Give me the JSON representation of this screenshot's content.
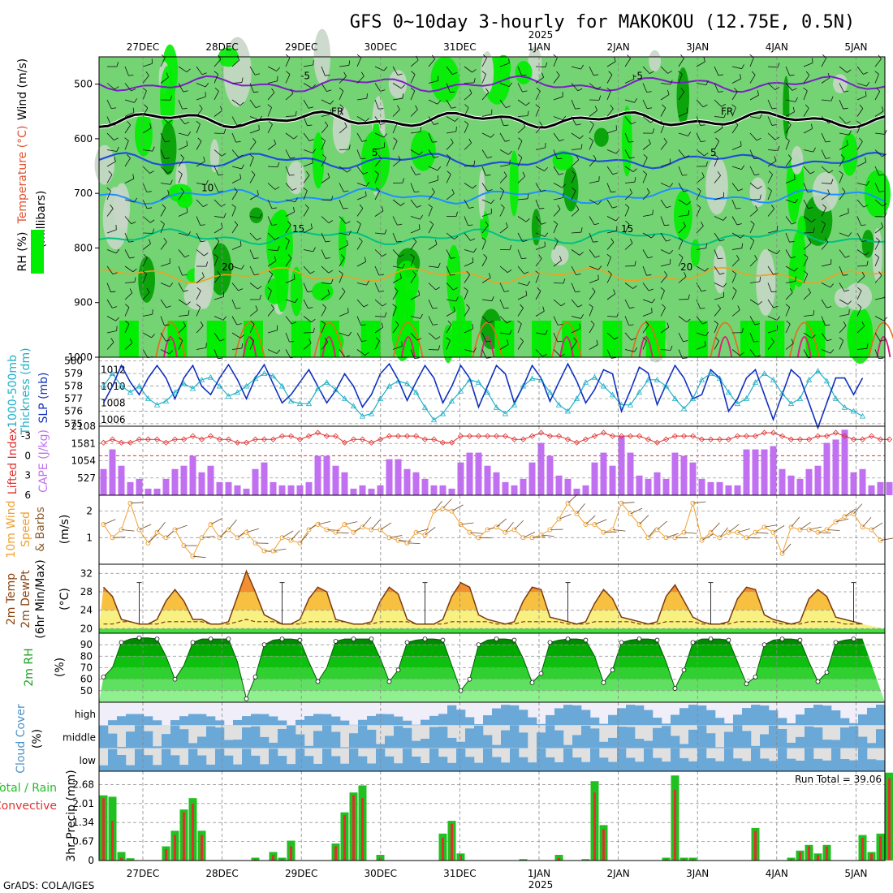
{
  "title": "GFS 0~10day 3-hourly for MAKOKOU (12.75E, 0.5N)",
  "year_label": "2025",
  "credit": "GrADS: COLA/IGES",
  "date_labels": [
    "27DEC",
    "28DEC",
    "29DEC",
    "30DEC",
    "31DEC",
    "1JAN",
    "2JAN",
    "3JAN",
    "4JAN",
    "5JAN"
  ],
  "colors": {
    "rh_light": "#c8d6c8",
    "rh_mid": "#74d474",
    "rh_dark": "#00ee00",
    "rh_darkest": "#00a000",
    "temp_neg5": "#7b1fc4",
    "temp_fr": "#000000",
    "temp_5": "#1f4fd6",
    "temp_10": "#1e90ff",
    "temp_15": "#00c080",
    "temp_20": "#f0a020",
    "temp_25": "#e07020",
    "temp_30": "#e0207a",
    "thickness": "#20b0c8",
    "slp": "#1030c0",
    "lifted": "#e03030",
    "cape": "#c070f0",
    "wind": "#f0a030",
    "precip_total": "#20c020",
    "precip_conv": "#e03030",
    "cloud": "#6aa8d8"
  },
  "panels": {
    "upper": {
      "ylabel_wind": "Wind (m/s)",
      "ylabel_temp": "Temperature (°C)",
      "ylabel_rh": "RH (%)",
      "ylabel_units": "(millibars)",
      "yticks": [
        "500",
        "600",
        "700",
        "800",
        "900",
        "1000"
      ],
      "contour_labels": [
        "-5",
        "FR",
        "5",
        "10",
        "15",
        "20"
      ]
    },
    "thickness": {
      "ylabel_left": "1000-500mb",
      "ylabel_left2": "Thickness (dm)",
      "ylabel_right": "SLP (mb)",
      "left_ticks": [
        "580",
        "579",
        "578",
        "577",
        "576",
        "575"
      ],
      "right_ticks": [
        "1012",
        "1010",
        "1008",
        "1006"
      ]
    },
    "cape": {
      "ylabel_left": "Lifted Index",
      "ylabel_right": "CAPE (J/kg)",
      "left_ticks": [
        "-3",
        "0",
        "3",
        "6"
      ],
      "right_ticks": [
        "2108",
        "1581",
        "1054",
        "527"
      ]
    },
    "wind10": {
      "ylabel_a": "10m Wind",
      "ylabel_b": "Speed",
      "ylabel_c": "& Barbs",
      "ylabel_d": "(m/s)",
      "ticks": [
        "2",
        "1"
      ]
    },
    "temp2m": {
      "ylabel_a": "2m Temp",
      "ylabel_b": "2m DewPt",
      "ylabel_c": "(6hr Min/Max)",
      "ylabel_d": "(°C)",
      "ticks": [
        "32",
        "28",
        "24",
        "20"
      ]
    },
    "rh2m": {
      "ylabel_a": "2m RH",
      "ylabel_b": "(%)",
      "ticks": [
        "90",
        "80",
        "70",
        "60",
        "50"
      ]
    },
    "cloud": {
      "ylabel_a": "Cloud Cover",
      "ylabel_b": "(%)",
      "levels": [
        "high",
        "middle",
        "low"
      ]
    },
    "precip": {
      "ylabel_a": "Total / Rain",
      "ylabel_b": "Convective",
      "ylabel_c": "3hr Precip (mm)",
      "ticks": [
        "2.68",
        "2.01",
        "1.34",
        "0.67",
        "0"
      ],
      "run_total": "Run Total = 39.06"
    }
  },
  "chart_data": [
    {
      "type": "line",
      "name": "2m temperature",
      "x_start": "26DEC 09Z",
      "x_step_hours": 3,
      "ylabel": "°C",
      "ylim": [
        19,
        34
      ],
      "series": [
        {
          "name": "2m Temp",
          "values": [
            29,
            27,
            22,
            21.5,
            21,
            21,
            22,
            26,
            28.5,
            26,
            22,
            22,
            21,
            21,
            21.5,
            27,
            32.5,
            28,
            23,
            22,
            21,
            21,
            22,
            26.5,
            29,
            28,
            22,
            21.5,
            21,
            21,
            21.5,
            26,
            29,
            27.5,
            22,
            21,
            21,
            21,
            22,
            27,
            30,
            29,
            23,
            22,
            21.5,
            21,
            21.5,
            26,
            29,
            28.5,
            22.5,
            22,
            21.5,
            21,
            21.5,
            25.5,
            28.5,
            26.5,
            22.5,
            22,
            21.5,
            21,
            21.5,
            27,
            29.5,
            26,
            22.5,
            21.5,
            21,
            21,
            21.5,
            26.5,
            29,
            28.5,
            23,
            22,
            21.5,
            21,
            21.5,
            26.5,
            28.5,
            27,
            22.5,
            22,
            21.5,
            21
          ]
        },
        {
          "name": "2m DewPt",
          "values": [
            21,
            21,
            21.5,
            21.5,
            21,
            21,
            21,
            21.5,
            21.5,
            21.5,
            21.5,
            21.5,
            21,
            21,
            21,
            21.5,
            22,
            21.5,
            21.5,
            21.5,
            21,
            21,
            21,
            21.5,
            21.5,
            21.5,
            21.5,
            21.5,
            21,
            21,
            21,
            21.5,
            21.5,
            21.5,
            21.5,
            21,
            21,
            21,
            21,
            21.5,
            21.5,
            21.5,
            21.5,
            21.5,
            21,
            21,
            21,
            21.5,
            21.5,
            21.5,
            21.5,
            21.5,
            21,
            21,
            21,
            21.5,
            21.5,
            21.5,
            21.5,
            21.5,
            21,
            21,
            21,
            21.5,
            21.5,
            21.5,
            21.5,
            21,
            21,
            21,
            21,
            21.5,
            21.5,
            21.5,
            21.5,
            21.5,
            21,
            21,
            21,
            21.5,
            21.5,
            21.5,
            21.5,
            21,
            21,
            21
          ]
        }
      ]
    },
    {
      "type": "area",
      "name": "2m RH",
      "x_start": "26DEC 09Z",
      "x_step_hours": 3,
      "ylabel": "%",
      "ylim": [
        40,
        100
      ],
      "values": [
        62,
        70,
        92,
        95,
        96,
        96,
        95,
        80,
        60,
        72,
        92,
        95,
        95,
        95,
        95,
        75,
        43,
        62,
        90,
        94,
        95,
        95,
        94,
        75,
        58,
        70,
        93,
        95,
        95,
        95,
        95,
        78,
        58,
        68,
        92,
        94,
        95,
        95,
        94,
        72,
        50,
        60,
        90,
        94,
        95,
        95,
        94,
        78,
        57,
        65,
        92,
        94,
        95,
        95,
        94,
        80,
        57,
        68,
        92,
        94,
        95,
        95,
        94,
        75,
        52,
        68,
        92,
        95,
        95,
        95,
        94,
        75,
        56,
        62,
        90,
        94,
        95,
        95,
        94,
        75,
        58,
        66,
        92,
        94,
        95,
        95
      ]
    },
    {
      "type": "bar",
      "name": "3hr Precip",
      "x_start": "26DEC 09Z",
      "x_step_hours": 3,
      "ylabel": "mm",
      "ylim": [
        0,
        3.0
      ],
      "series": [
        {
          "name": "Total",
          "values": [
            2.3,
            2.25,
            0.3,
            0.08,
            0,
            0,
            0,
            0.5,
            1.05,
            1.8,
            2.2,
            1.05,
            0,
            0,
            0,
            0,
            0,
            0.1,
            0,
            0.3,
            0.1,
            0.7,
            0,
            0,
            0,
            0,
            0.6,
            1.7,
            2.4,
            2.65,
            0,
            0.2,
            0,
            0,
            0,
            0,
            0,
            0,
            0.95,
            1.4,
            0.25,
            0,
            0,
            0,
            0,
            0,
            0,
            0.05,
            0,
            0,
            0,
            0.2,
            0,
            0,
            0.05,
            2.8,
            1.25,
            0,
            0,
            0,
            0,
            0,
            0,
            0.1,
            3.0,
            0.1,
            0.1,
            0,
            0,
            0,
            0,
            0,
            0,
            1.15,
            0,
            0,
            0,
            0.1,
            0.35,
            0.55,
            0.25,
            0.55,
            0,
            0,
            0,
            0.9,
            0.3,
            0.95,
            3.1,
            0.1,
            0.1
          ]
        },
        {
          "name": "Convective",
          "values": [
            2.2,
            1.4,
            0.1,
            0,
            0,
            0,
            0,
            0.4,
            0.9,
            1.7,
            2.0,
            0.9,
            0,
            0,
            0,
            0,
            0,
            0.05,
            0,
            0.2,
            0.05,
            0.5,
            0,
            0,
            0,
            0,
            0.5,
            1.6,
            2.3,
            2.2,
            0,
            0.1,
            0,
            0,
            0,
            0,
            0,
            0,
            0.8,
            1.3,
            0.2,
            0,
            0,
            0,
            0,
            0,
            0,
            0,
            0,
            0,
            0,
            0.1,
            0,
            0,
            0,
            2.4,
            1.1,
            0,
            0,
            0,
            0,
            0,
            0,
            0.05,
            2.5,
            0.05,
            0.05,
            0,
            0,
            0,
            0,
            0,
            0,
            1.05,
            0,
            0,
            0,
            0.05,
            0.3,
            0.5,
            0.2,
            0.5,
            0,
            0,
            0,
            0.8,
            0.25,
            0.85,
            2.9,
            0.05,
            0.05
          ]
        }
      ]
    },
    {
      "type": "line",
      "name": "Thickness and SLP",
      "x_start": "26DEC 09Z",
      "x_step_hours": 3,
      "series": [
        {
          "name": "Thickness (dm)",
          "values": [
            578,
            579,
            578,
            577.5,
            578,
            577,
            576.5,
            576.8,
            577.5,
            578.2,
            577.8,
            578.5,
            578.7,
            578,
            577.2,
            577.5,
            578,
            578.6,
            579,
            578.8,
            578,
            576.8,
            576.6,
            576.6,
            577.8,
            578.3,
            577.7,
            577,
            576.4,
            575.6,
            575.8,
            577,
            578,
            578.4,
            578.2,
            577.5,
            576.3,
            575.3,
            575.8,
            576.8,
            577.6,
            578.5,
            578.3,
            577.5,
            576.3,
            575.8,
            576.5,
            578,
            578.6,
            578.5,
            577.5,
            576.5,
            576,
            577,
            578.3,
            578.7,
            578,
            577.3,
            576.5,
            576.5,
            577.5,
            578.5,
            578.5,
            578,
            577,
            576.2,
            577,
            578.5,
            579,
            578.6,
            577.5,
            576.6,
            577,
            578.3,
            579,
            578.5,
            577.4,
            576.6,
            577,
            578.5,
            579.2,
            578.4,
            577,
            576.3,
            576,
            575.6
          ]
        },
        {
          "name": "SLP (mb)",
          "values": [
            1008,
            1010,
            1012.5,
            1010.5,
            1009,
            1011,
            1012.5,
            1011,
            1008.5,
            1011,
            1012.5,
            1010,
            1009,
            1011,
            1012.6,
            1010.8,
            1008.5,
            1011,
            1012.6,
            1010.3,
            1008,
            1009,
            1010.5,
            1012,
            1010,
            1008,
            1009.5,
            1011.5,
            1010,
            1007.5,
            1009,
            1011.5,
            1012.7,
            1010.8,
            1008.3,
            1010.5,
            1012.5,
            1011,
            1008,
            1010,
            1012.5,
            1011,
            1007.5,
            1010,
            1012.5,
            1011.5,
            1008,
            1010,
            1012.5,
            1011,
            1008.2,
            1010.5,
            1012.7,
            1010.6,
            1008,
            1009.6,
            1012,
            1011.5,
            1007,
            1009.5,
            1012.3,
            1011.6,
            1007.8,
            1010.2,
            1012.5,
            1011,
            1008.5,
            1009,
            1012,
            1011,
            1007,
            1008.5,
            1011,
            1012,
            1009,
            1006,
            1009,
            1012,
            1011,
            1008,
            1005,
            1008,
            1011,
            1011,
            1009,
            1011
          ]
        }
      ]
    },
    {
      "type": "bar",
      "name": "CAPE and Lifted Index",
      "x_start": "26DEC 09Z",
      "x_step_hours": 3,
      "series": [
        {
          "name": "CAPE (J/kg)",
          "values": [
            800,
            1400,
            900,
            400,
            500,
            200,
            200,
            500,
            800,
            900,
            1200,
            700,
            900,
            400,
            400,
            300,
            200,
            800,
            1000,
            400,
            300,
            300,
            300,
            400,
            1200,
            1200,
            900,
            700,
            200,
            300,
            200,
            300,
            1100,
            1100,
            800,
            700,
            500,
            300,
            300,
            200,
            1000,
            1300,
            1300,
            900,
            700,
            400,
            300,
            500,
            1000,
            1600,
            1200,
            600,
            500,
            200,
            300,
            1000,
            1300,
            900,
            1800,
            1300,
            600,
            500,
            700,
            500,
            1300,
            1200,
            1000,
            500,
            400,
            400,
            300,
            300,
            1400,
            1400,
            1400,
            1500,
            800,
            600,
            500,
            800,
            900,
            1600,
            1700,
            2000,
            700,
            800,
            300,
            400,
            400
          ]
        },
        {
          "name": "Lifted Index",
          "values": [
            -2,
            -2.5,
            -2,
            -2,
            -2.5,
            -2.5,
            -2.5,
            -2,
            -2.5,
            -2.5,
            -3,
            -2.5,
            -3,
            -2.5,
            -2.5,
            -2,
            -2,
            -2.5,
            -2.5,
            -2.5,
            -3,
            -3,
            -2.5,
            -3,
            -3.5,
            -3,
            -3,
            -2,
            -2.5,
            -2.5,
            -2,
            -2.5,
            -3,
            -3,
            -3,
            -3,
            -2.5,
            -2.5,
            -2,
            -2,
            -3,
            -3,
            -3,
            -3,
            -3,
            -3,
            -2.5,
            -2.5,
            -3,
            -3.5,
            -3,
            -3,
            -2.5,
            -2,
            -2.5,
            -3,
            -3.5,
            -3,
            -3,
            -3,
            -3,
            -2.5,
            -2,
            -2.5,
            -3,
            -3,
            -3,
            -2.5,
            -2.5,
            -2.5,
            -2.5,
            -3,
            -3,
            -3,
            -3.5,
            -3.5,
            -3,
            -2.5,
            -2.5,
            -2.5,
            -3,
            -3,
            -3.5,
            -3,
            -2.5,
            -2.5,
            -3,
            -2.5,
            -2.5
          ]
        }
      ]
    },
    {
      "type": "line",
      "name": "10m Wind Speed",
      "x_start": "26DEC 09Z",
      "x_step_hours": 3,
      "ylabel": "m/s",
      "values": [
        1.5,
        1,
        1.3,
        2.3,
        1.3,
        0.8,
        1.2,
        1,
        1.3,
        0.7,
        0.3,
        1,
        1.5,
        1,
        1.3,
        1,
        1.2,
        0.8,
        0.5,
        0.5,
        1,
        0.9,
        0.8,
        1.3,
        1.5,
        1.3,
        1.2,
        1.5,
        1.2,
        1.4,
        1.3,
        1.3,
        1,
        0.9,
        0.8,
        1.2,
        1.1,
        2,
        2.1,
        2,
        1.5,
        1.2,
        1,
        1.3,
        1.4,
        1.2,
        1.3,
        1,
        1,
        1.1,
        1.3,
        1.7,
        2.3,
        1.9,
        1.5,
        1.5,
        1.2,
        1.3,
        2.3,
        1.9,
        1.5,
        1,
        1.3,
        1,
        1,
        1.2,
        2.3,
        0.9,
        1.2,
        1,
        1.2,
        1.2,
        1,
        1.2,
        1.4,
        1.2,
        0.4,
        1.4,
        1.3,
        1.3,
        1.2,
        1.3,
        1.6,
        1.8,
        1.9,
        1.4,
        1.3,
        0.9
      ]
    }
  ]
}
